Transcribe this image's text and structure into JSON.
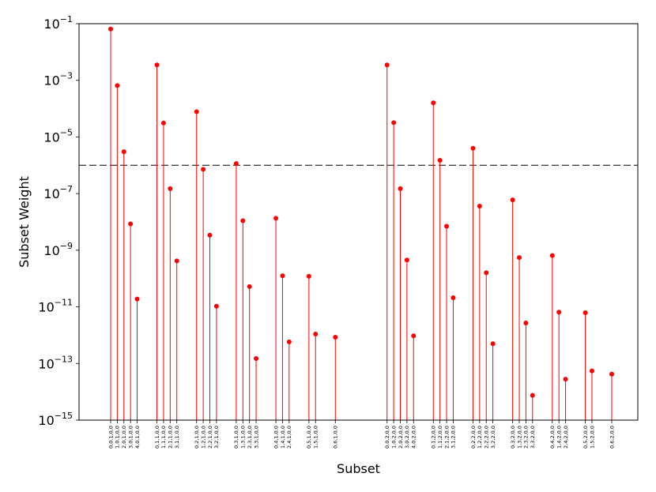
{
  "chart_data": {
    "type": "stem",
    "xlabel": "Subset",
    "ylabel": "Subset Weight",
    "y_scale": "log",
    "ylim": [
      1e-15,
      0.1
    ],
    "ytick_labels": [
      {
        "value": 0.1,
        "base": "10",
        "exp": "−1"
      },
      {
        "value": 0.001,
        "base": "10",
        "exp": "−3"
      },
      {
        "value": 1e-05,
        "base": "10",
        "exp": "−5"
      },
      {
        "value": 1e-07,
        "base": "10",
        "exp": "−7"
      },
      {
        "value": 1e-09,
        "base": "10",
        "exp": "−9"
      },
      {
        "value": 1e-11,
        "base": "10",
        "exp": "−11"
      },
      {
        "value": 1e-13,
        "base": "10",
        "exp": "−13"
      },
      {
        "value": 1e-15,
        "base": "10",
        "exp": "−15"
      }
    ],
    "threshold": 1e-06,
    "stem_color": "#ff0000",
    "marker_color": "#ff0000",
    "threshold_color": "#000000",
    "grid": false,
    "points": [
      {
        "label": "0,0,1,0,0",
        "value": 0.065
      },
      {
        "label": "1,0,1,0,0",
        "value": 0.00065
      },
      {
        "label": "2,0,1,0,0",
        "value": 3e-06
      },
      {
        "label": "3,0,1,0,0",
        "value": 8.5e-09
      },
      {
        "label": "4,0,1,0,0",
        "value": 1.9e-11
      },
      {
        "label": "0,1,1,0,0",
        "value": 0.0035
      },
      {
        "label": "1,1,1,0,0",
        "value": 3.1e-05
      },
      {
        "label": "2,1,1,0,0",
        "value": 1.5e-07
      },
      {
        "label": "3,1,1,0,0",
        "value": 4.2e-10
      },
      {
        "label": "0,2,1,0,0",
        "value": 7.8e-05
      },
      {
        "label": "1,2,1,0,0",
        "value": 7.2e-07
      },
      {
        "label": "2,2,1,0,0",
        "value": 3.4e-09
      },
      {
        "label": "3,2,1,0,0",
        "value": 1.05e-11
      },
      {
        "label": "0,3,1,0,0",
        "value": 1.15e-06
      },
      {
        "label": "1,3,1,0,0",
        "value": 1.1e-08
      },
      {
        "label": "2,3,1,0,0",
        "value": 5.2e-11
      },
      {
        "label": "3,3,1,0,0",
        "value": 1.5e-13
      },
      {
        "label": "0,4,1,0,0",
        "value": 1.35e-08
      },
      {
        "label": "1,4,1,0,0",
        "value": 1.25e-10
      },
      {
        "label": "2,4,1,0,0",
        "value": 5.8e-13
      },
      {
        "label": "0,5,1,0,0",
        "value": 1.2e-10
      },
      {
        "label": "1,5,1,0,0",
        "value": 1.1e-12
      },
      {
        "label": "0,6,1,0,0",
        "value": 8.5e-13
      },
      {
        "label": "0,0,2,0,0",
        "value": 0.0035
      },
      {
        "label": "1,0,2,0,0",
        "value": 3.2e-05
      },
      {
        "label": "2,0,2,0,0",
        "value": 1.5e-07
      },
      {
        "label": "3,0,2,0,0",
        "value": 4.5e-10
      },
      {
        "label": "4,0,2,0,0",
        "value": 9.5e-13
      },
      {
        "label": "0,1,2,0,0",
        "value": 0.00016
      },
      {
        "label": "1,1,2,0,0",
        "value": 1.5e-06
      },
      {
        "label": "2,1,2,0,0",
        "value": 7e-09
      },
      {
        "label": "3,1,2,0,0",
        "value": 2.1e-11
      },
      {
        "label": "0,2,2,0,0",
        "value": 4e-06
      },
      {
        "label": "1,2,2,0,0",
        "value": 3.6e-08
      },
      {
        "label": "2,2,2,0,0",
        "value": 1.6e-10
      },
      {
        "label": "3,2,2,0,0",
        "value": 5e-13
      },
      {
        "label": "0,3,2,0,0",
        "value": 6e-08
      },
      {
        "label": "1,3,2,0,0",
        "value": 5.5e-10
      },
      {
        "label": "2,3,2,0,0",
        "value": 2.7e-12
      },
      {
        "label": "3,3,2,0,0",
        "value": 7.5e-15
      },
      {
        "label": "0,4,2,0,0",
        "value": 6.5e-10
      },
      {
        "label": "1,4,2,0,0",
        "value": 6.5e-12
      },
      {
        "label": "2,4,2,0,0",
        "value": 2.8e-14
      },
      {
        "label": "0,5,2,0,0",
        "value": 6.2e-12
      },
      {
        "label": "1,5,2,0,0",
        "value": 5.5e-14
      },
      {
        "label": "0,6,2,0,0",
        "value": 4.2e-14
      }
    ]
  }
}
